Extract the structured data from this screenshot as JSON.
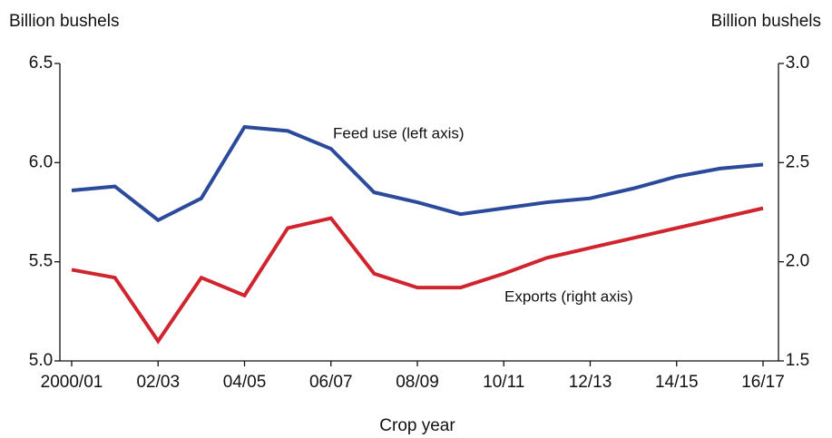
{
  "chart_data": {
    "type": "line",
    "x_label": "Crop year",
    "y_label": "Billion bushels",
    "y2_label": "Billion bushels",
    "categories": [
      "2000/01",
      null,
      "02/03",
      null,
      "04/05",
      null,
      "06/07",
      null,
      "08/09",
      null,
      "10/11",
      null,
      "12/13",
      null,
      "14/15",
      null,
      "16/17"
    ],
    "series": [
      {
        "name": "Feed use (left axis)",
        "color": "#2b4a9b",
        "axis": "y",
        "values": [
          5.86,
          5.88,
          5.71,
          5.82,
          6.18,
          6.16,
          6.07,
          5.85,
          5.8,
          5.74,
          5.77,
          5.8,
          5.82,
          5.87,
          5.93,
          5.97,
          5.99
        ]
      },
      {
        "name": "Exports (right axis)",
        "color": "#d0252f",
        "axis": "y2",
        "values": [
          1.96,
          1.92,
          1.6,
          1.92,
          1.83,
          2.17,
          2.22,
          1.94,
          1.87,
          1.87,
          1.94,
          2.02,
          2.07,
          2.12,
          2.17,
          2.22,
          2.27
        ]
      }
    ],
    "ylim": [
      5.0,
      6.5
    ],
    "yticks": [
      {
        "value": 5,
        "label": "5.0"
      },
      5.5,
      {
        "value": 6,
        "label": "6.0"
      },
      6.5
    ],
    "y2lim": [
      1.5,
      3.0
    ],
    "y2ticks": [
      1.5,
      {
        "value": 2,
        "label": "2.0"
      },
      2.5,
      {
        "value": 3,
        "label": "3.0"
      }
    ],
    "grid": false
  }
}
